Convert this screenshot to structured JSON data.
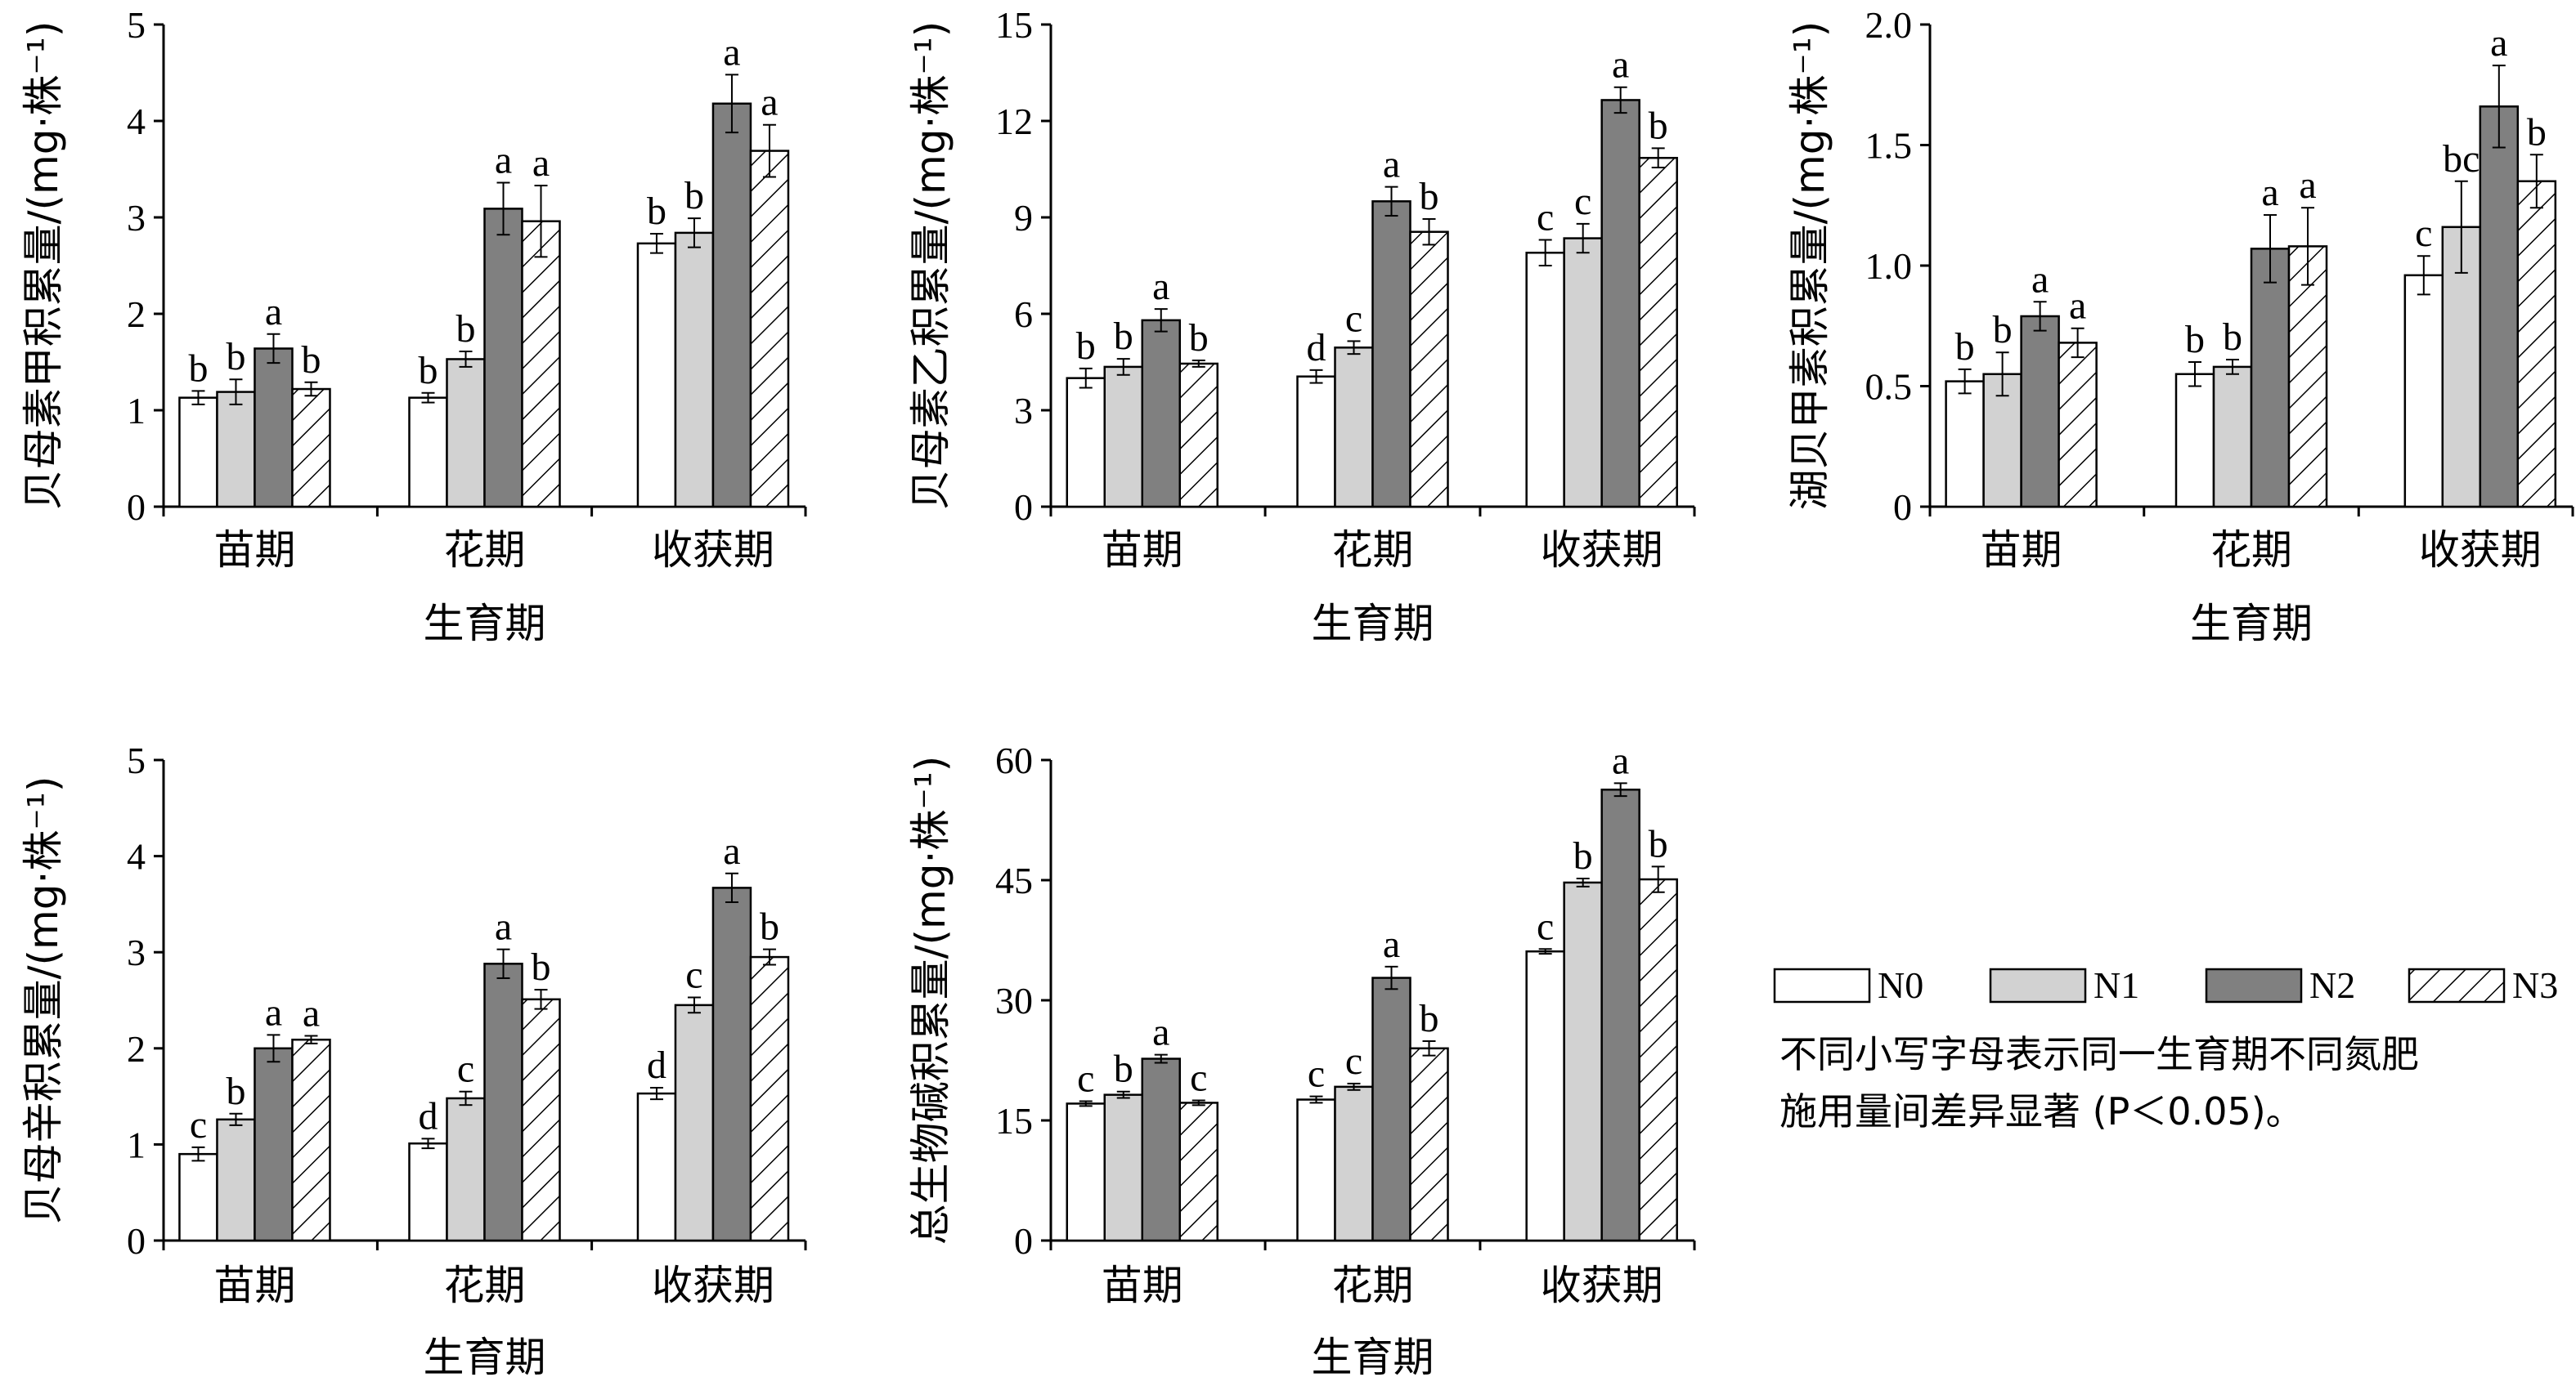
{
  "legend": [
    "N0",
    "N1",
    "N2",
    "N3"
  ],
  "series_styles": [
    {
      "name": "N0",
      "fill": "#ffffff"
    },
    {
      "name": "N1",
      "fill": "#d2d2d2"
    },
    {
      "name": "N2",
      "fill": "#808080"
    },
    {
      "name": "N3",
      "fill": "hatch"
    }
  ],
  "note": {
    "line1": "不同小写字母表示同一生育期不同氮肥",
    "line2": "施用量间差异显著 (P＜0.05)。"
  },
  "chart_data": [
    {
      "type": "bar",
      "ylabel": "贝母素甲积累量/(mg·株⁻¹)",
      "xlabel": "生育期",
      "categories": [
        "苗期",
        "花期",
        "收获期"
      ],
      "ylim": [
        0,
        5
      ],
      "yticks": [
        "0",
        "1",
        "2",
        "3",
        "4",
        "5"
      ],
      "yticks_values": [
        0,
        1,
        2,
        3,
        4,
        5
      ],
      "series": [
        {
          "name": "N0",
          "values": [
            1.13,
            1.13,
            2.73
          ],
          "errors": [
            0.07,
            0.05,
            0.1
          ],
          "letters": [
            "b",
            "b",
            "b"
          ]
        },
        {
          "name": "N1",
          "values": [
            1.19,
            1.53,
            2.84
          ],
          "errors": [
            0.13,
            0.08,
            0.15
          ],
          "letters": [
            "b",
            "b",
            "b"
          ]
        },
        {
          "name": "N2",
          "values": [
            1.64,
            3.09,
            4.18
          ],
          "errors": [
            0.15,
            0.27,
            0.3
          ],
          "letters": [
            "a",
            "a",
            "a"
          ]
        },
        {
          "name": "N3",
          "values": [
            1.22,
            2.96,
            3.69
          ],
          "errors": [
            0.07,
            0.37,
            0.27
          ],
          "letters": [
            "b",
            "a",
            "a"
          ]
        }
      ]
    },
    {
      "type": "bar",
      "ylabel": "贝母素乙积累量/(mg·株⁻¹)",
      "xlabel": "生育期",
      "categories": [
        "苗期",
        "花期",
        "收获期"
      ],
      "ylim": [
        0,
        15
      ],
      "yticks": [
        "0",
        "3",
        "6",
        "9",
        "12",
        "15"
      ],
      "yticks_values": [
        0,
        3,
        6,
        9,
        12,
        15
      ],
      "series": [
        {
          "name": "N0",
          "values": [
            4.0,
            4.05,
            7.9
          ],
          "errors": [
            0.3,
            0.2,
            0.4
          ],
          "letters": [
            "b",
            "d",
            "c"
          ]
        },
        {
          "name": "N1",
          "values": [
            4.35,
            4.95,
            8.35
          ],
          "errors": [
            0.25,
            0.2,
            0.45
          ],
          "letters": [
            "b",
            "c",
            "c"
          ]
        },
        {
          "name": "N2",
          "values": [
            5.8,
            9.5,
            12.65
          ],
          "errors": [
            0.35,
            0.45,
            0.4
          ],
          "letters": [
            "a",
            "a",
            "a"
          ]
        },
        {
          "name": "N3",
          "values": [
            4.45,
            8.55,
            10.85
          ],
          "errors": [
            0.1,
            0.4,
            0.3
          ],
          "letters": [
            "b",
            "b",
            "b"
          ]
        }
      ]
    },
    {
      "type": "bar",
      "ylabel": "湖贝甲素积累量/(mg·株⁻¹)",
      "xlabel": "生育期",
      "categories": [
        "苗期",
        "花期",
        "收获期"
      ],
      "ylim": [
        0,
        2.0
      ],
      "yticks": [
        "0",
        "0.5",
        "1.0",
        "1.5",
        "2.0"
      ],
      "yticks_values": [
        0,
        0.5,
        1.0,
        1.5,
        2.0
      ],
      "series": [
        {
          "name": "N0",
          "values": [
            0.52,
            0.55,
            0.96
          ],
          "errors": [
            0.05,
            0.05,
            0.08
          ],
          "letters": [
            "b",
            "b",
            "c"
          ]
        },
        {
          "name": "N1",
          "values": [
            0.55,
            0.58,
            1.16
          ],
          "errors": [
            0.09,
            0.03,
            0.19
          ],
          "letters": [
            "b",
            "b",
            "bc"
          ]
        },
        {
          "name": "N2",
          "values": [
            0.79,
            1.07,
            1.66
          ],
          "errors": [
            0.06,
            0.14,
            0.17
          ],
          "letters": [
            "a",
            "a",
            "a"
          ]
        },
        {
          "name": "N3",
          "values": [
            0.68,
            1.08,
            1.35
          ],
          "errors": [
            0.06,
            0.16,
            0.11
          ],
          "letters": [
            "a",
            "a",
            "b"
          ]
        }
      ]
    },
    {
      "type": "bar",
      "ylabel": "贝母辛积累量/(mg·株⁻¹)",
      "xlabel": "生育期",
      "categories": [
        "苗期",
        "花期",
        "收获期"
      ],
      "ylim": [
        0,
        5
      ],
      "yticks": [
        "0",
        "1",
        "2",
        "3",
        "4",
        "5"
      ],
      "yticks_values": [
        0,
        1,
        2,
        3,
        4,
        5
      ],
      "series": [
        {
          "name": "N0",
          "values": [
            0.9,
            1.01,
            1.53
          ],
          "errors": [
            0.07,
            0.05,
            0.06
          ],
          "letters": [
            "c",
            "d",
            "d"
          ]
        },
        {
          "name": "N1",
          "values": [
            1.26,
            1.48,
            2.45
          ],
          "errors": [
            0.06,
            0.07,
            0.08
          ],
          "letters": [
            "b",
            "c",
            "c"
          ]
        },
        {
          "name": "N2",
          "values": [
            2.0,
            2.88,
            3.67
          ],
          "errors": [
            0.14,
            0.15,
            0.15
          ],
          "letters": [
            "a",
            "a",
            "a"
          ]
        },
        {
          "name": "N3",
          "values": [
            2.09,
            2.51,
            2.95
          ],
          "errors": [
            0.04,
            0.1,
            0.08
          ],
          "letters": [
            "a",
            "b",
            "b"
          ]
        }
      ]
    },
    {
      "type": "bar",
      "ylabel": "总生物碱积累量/(mg·株⁻¹)",
      "xlabel": "生育期",
      "categories": [
        "苗期",
        "花期",
        "收获期"
      ],
      "ylim": [
        0,
        60
      ],
      "yticks": [
        "0",
        "15",
        "30",
        "45",
        "60"
      ],
      "yticks_values": [
        0,
        15,
        30,
        45,
        60
      ],
      "series": [
        {
          "name": "N0",
          "values": [
            17.1,
            17.6,
            36.1
          ],
          "errors": [
            0.3,
            0.4,
            0.3
          ],
          "letters": [
            "c",
            "c",
            "c"
          ]
        },
        {
          "name": "N1",
          "values": [
            18.2,
            19.2,
            44.7
          ],
          "errors": [
            0.4,
            0.4,
            0.5
          ],
          "letters": [
            "b",
            "c",
            "b"
          ]
        },
        {
          "name": "N2",
          "values": [
            22.7,
            32.8,
            56.3
          ],
          "errors": [
            0.5,
            1.4,
            0.8
          ],
          "letters": [
            "a",
            "a",
            "a"
          ]
        },
        {
          "name": "N3",
          "values": [
            17.2,
            24.0,
            45.1
          ],
          "errors": [
            0.3,
            0.9,
            1.6
          ],
          "letters": [
            "c",
            "b",
            "b"
          ]
        }
      ]
    }
  ]
}
